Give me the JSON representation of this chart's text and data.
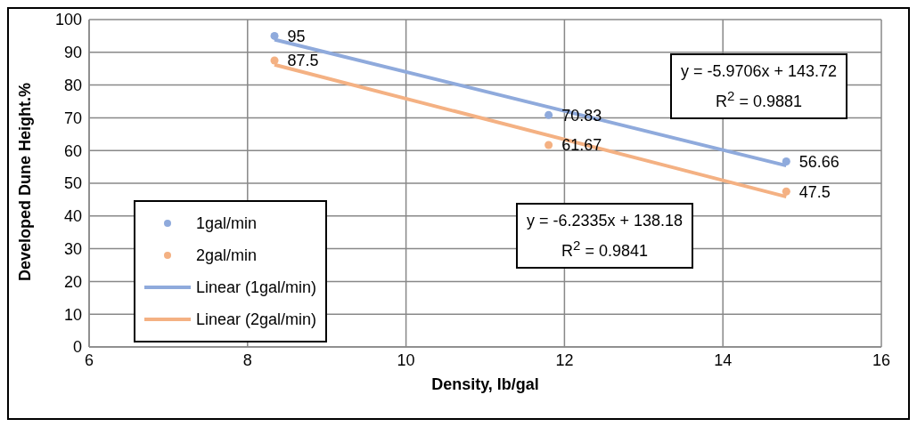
{
  "chart_data": {
    "type": "scatter",
    "xlabel": "Density, lb/gal",
    "ylabel": "Developed Dune Height.%",
    "series": [
      {
        "name": "1gal/min",
        "color": "#8faadc",
        "marker": "circle",
        "x": [
          8.34,
          11.8,
          14.8
        ],
        "values": [
          95,
          70.83,
          56.66
        ],
        "value_labels": [
          "95",
          "70.83",
          "56.66"
        ]
      },
      {
        "name": "2gal/min",
        "color": "#f4b183",
        "marker": "circle",
        "x": [
          8.34,
          11.8,
          14.8
        ],
        "values": [
          87.5,
          61.67,
          47.5
        ],
        "value_labels": [
          "87.5",
          "61.67",
          "47.5"
        ]
      },
      {
        "name": "Linear (1gal/min)",
        "type": "line",
        "color": "#8faadc",
        "marker": "none",
        "x": [
          8.34,
          14.8
        ],
        "values": [
          93.9,
          55.4
        ]
      },
      {
        "name": "Linear (2gal/min)",
        "type": "line",
        "color": "#f4b183",
        "marker": "none",
        "x": [
          8.34,
          14.8
        ],
        "values": [
          86.2,
          45.9
        ]
      }
    ],
    "line_style": "solid",
    "xlim": [
      6,
      16
    ],
    "xticks": [
      6,
      8,
      10,
      12,
      14,
      16
    ],
    "ylim": [
      0,
      100
    ],
    "yticks": [
      0,
      10,
      20,
      30,
      40,
      50,
      60,
      70,
      80,
      90,
      100
    ],
    "grid": true,
    "legend": "left",
    "annotations": [
      "y = -5.9706x + 143.72\nR$^{2}$ = 0.9881",
      "y = -6.2335x + 138.18\nR$^{2}$ = 0.9841"
    ]
  }
}
